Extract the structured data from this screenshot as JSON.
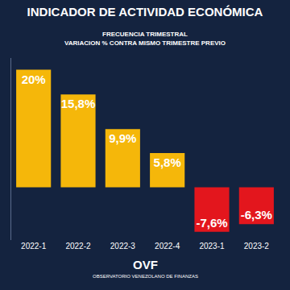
{
  "chart_data": {
    "type": "bar",
    "title": "INDICADOR DE ACTIVIDAD ECONÓMICA",
    "subtitle": [
      "FRECUENCIA TRIMESTRAL",
      "VARIACION % CONTRA MISMO TRIMESTRE PREVIO"
    ],
    "categories": [
      "2022-1",
      "2022-2",
      "2022-3",
      "2022-4",
      "2023-1",
      "2023-2"
    ],
    "values": [
      20,
      15.8,
      9.9,
      5.8,
      -7.6,
      -6.3
    ],
    "value_labels": [
      "20%",
      "15,8%",
      "9,9%",
      "5,8%",
      "-7,6%",
      "-6,3%"
    ],
    "colors": [
      "#f5b70a",
      "#f5b70a",
      "#f5b70a",
      "#f5b70a",
      "#e3161d",
      "#e3161d"
    ],
    "ylim": [
      -9,
      22
    ],
    "yticks": [],
    "grid": false,
    "data_labels": true,
    "tick_labels": "x",
    "annotations": [
      "OVF",
      "OBSERVATORIO VENEZOLANO DE FINANZAS"
    ]
  }
}
